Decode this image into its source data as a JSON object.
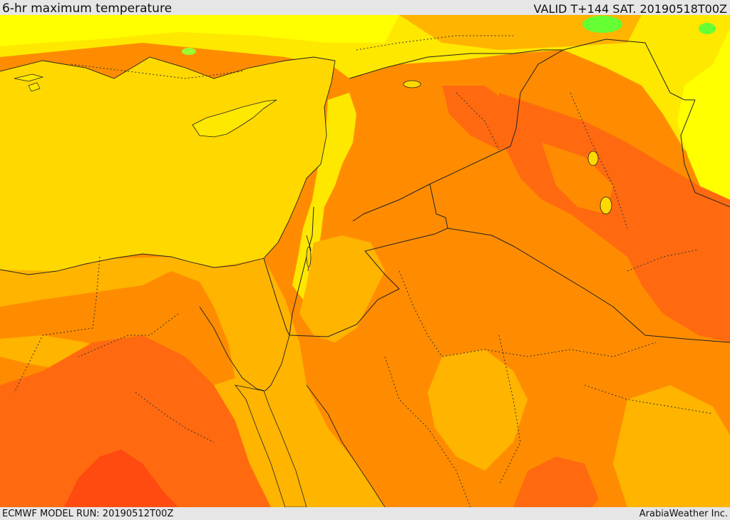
{
  "header": {
    "title": "6-hr maximum temperature",
    "valid": "VALID T+144 SAT. 20190518T00Z"
  },
  "footer": {
    "model_run": "ECMWF MODEL RUN: 20190512T00Z",
    "credit": "ArabiaWeather Inc."
  },
  "map": {
    "colors": {
      "sea": "#ffd800",
      "yellow": "#ffe800",
      "bright_yellow": "#ffff00",
      "green": "#66ff33",
      "light_orange": "#ffb400",
      "orange": "#ff8c00",
      "dark_orange": "#ff6a10",
      "red_orange": "#ff4a10",
      "border": "#222222"
    }
  }
}
